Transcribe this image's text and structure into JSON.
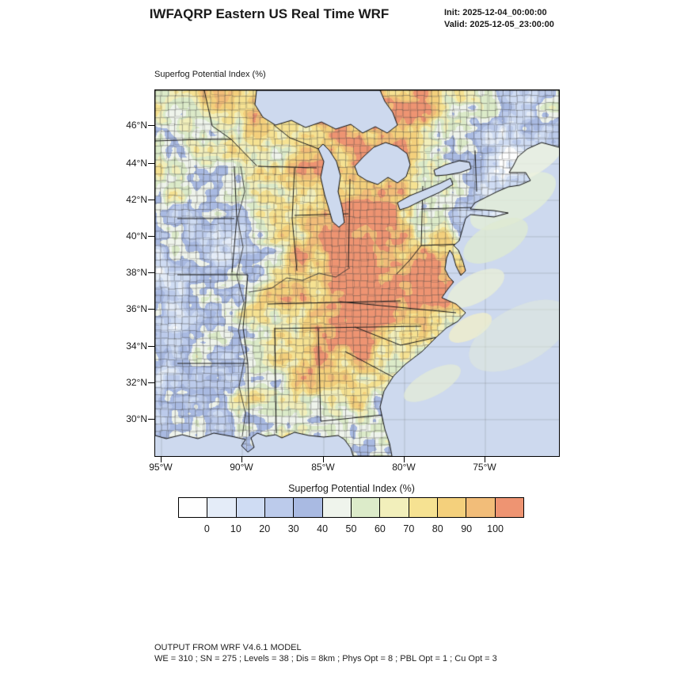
{
  "header": {
    "title": "IWFAQRP Eastern US Real Time WRF",
    "init": "Init: 2025-12-04_00:00:00",
    "valid": "Valid: 2025-12-05_23:00:00"
  },
  "map": {
    "field_label": "Superfog Potential Index  (%)",
    "lat_ticks": [
      "46°N",
      "44°N",
      "42°N",
      "40°N",
      "38°N",
      "36°N",
      "34°N",
      "32°N",
      "30°N"
    ],
    "lon_ticks": [
      "95°W",
      "90°W",
      "85°W",
      "80°W",
      "75°W"
    ],
    "ocean_color": "#cdd9ee",
    "coast_color": "#111111",
    "county_line_color": "#4a4a4a"
  },
  "colorbar": {
    "title": "Superfog Potential Index  (%)",
    "tick_labels": [
      "0",
      "10",
      "20",
      "30",
      "40",
      "50",
      "60",
      "70",
      "80",
      "90",
      "100"
    ],
    "colors": [
      "#fefefe",
      "#e4ecf8",
      "#cfdcf3",
      "#bccbeb",
      "#a9bae2",
      "#eff4ec",
      "#dcebc9",
      "#f2efbb",
      "#f6e292",
      "#f4d07c",
      "#f2bd79",
      "#ee9472"
    ]
  },
  "footer": {
    "line1": "OUTPUT FROM WRF V4.6.1 MODEL",
    "line2": "WE = 310 ; SN = 275 ; Levels = 38 ; Dis = 8km ; Phys Opt = 8 ; PBL Opt = 1 ; Cu Opt = 3"
  },
  "chart_data": {
    "type": "heatmap",
    "title": "Superfog Potential Index (%)",
    "units": "%",
    "levels": [
      0,
      10,
      20,
      30,
      40,
      50,
      60,
      70,
      80,
      90,
      100
    ],
    "palette": [
      "#fefefe",
      "#e4ecf8",
      "#cfdcf3",
      "#bccbeb",
      "#a9bae2",
      "#eff4ec",
      "#dcebc9",
      "#f2efbb",
      "#f6e292",
      "#f4d07c",
      "#f2bd79",
      "#ee9472"
    ],
    "x_axis": {
      "tick_labels": [
        "95°W",
        "90°W",
        "85°W",
        "80°W",
        "75°W"
      ]
    },
    "y_axis": {
      "tick_labels": [
        "46°N",
        "44°N",
        "42°N",
        "40°N",
        "38°N",
        "36°N",
        "34°N",
        "32°N",
        "30°N"
      ]
    },
    "legend_position": "bottom",
    "region": "Eastern US"
  }
}
